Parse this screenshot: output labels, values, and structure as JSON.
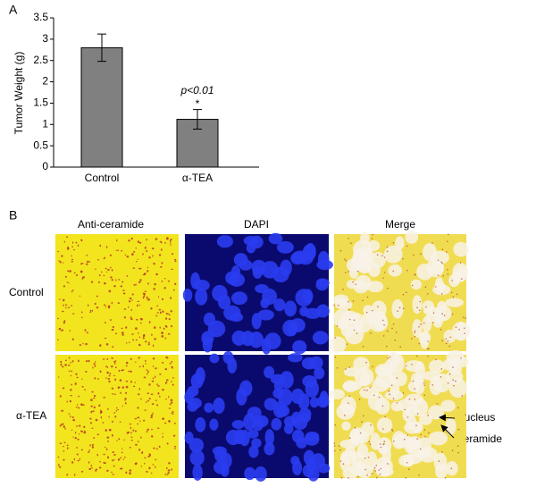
{
  "panel_a_label": "A",
  "chart_data": {
    "type": "bar",
    "ylabel": "Tumor Weight (g)",
    "categories": [
      "Control",
      "α-TEA"
    ],
    "values": [
      2.8,
      1.12
    ],
    "errors": [
      0.32,
      0.23
    ],
    "color": "#808080",
    "ylim": [
      0,
      3.5
    ],
    "yticks": [
      0,
      0.5,
      1,
      1.5,
      2,
      2.5,
      3,
      3.5
    ],
    "annotations": [
      "p<0.01",
      "*"
    ],
    "grid": false
  },
  "panel_b": {
    "label": "B",
    "columns": [
      "Anti-ceramide",
      "DAPI",
      "Merge"
    ],
    "rows": [
      "Control",
      "α-TEA"
    ],
    "annotations": [
      "Nucleus",
      "Ceramide"
    ]
  }
}
